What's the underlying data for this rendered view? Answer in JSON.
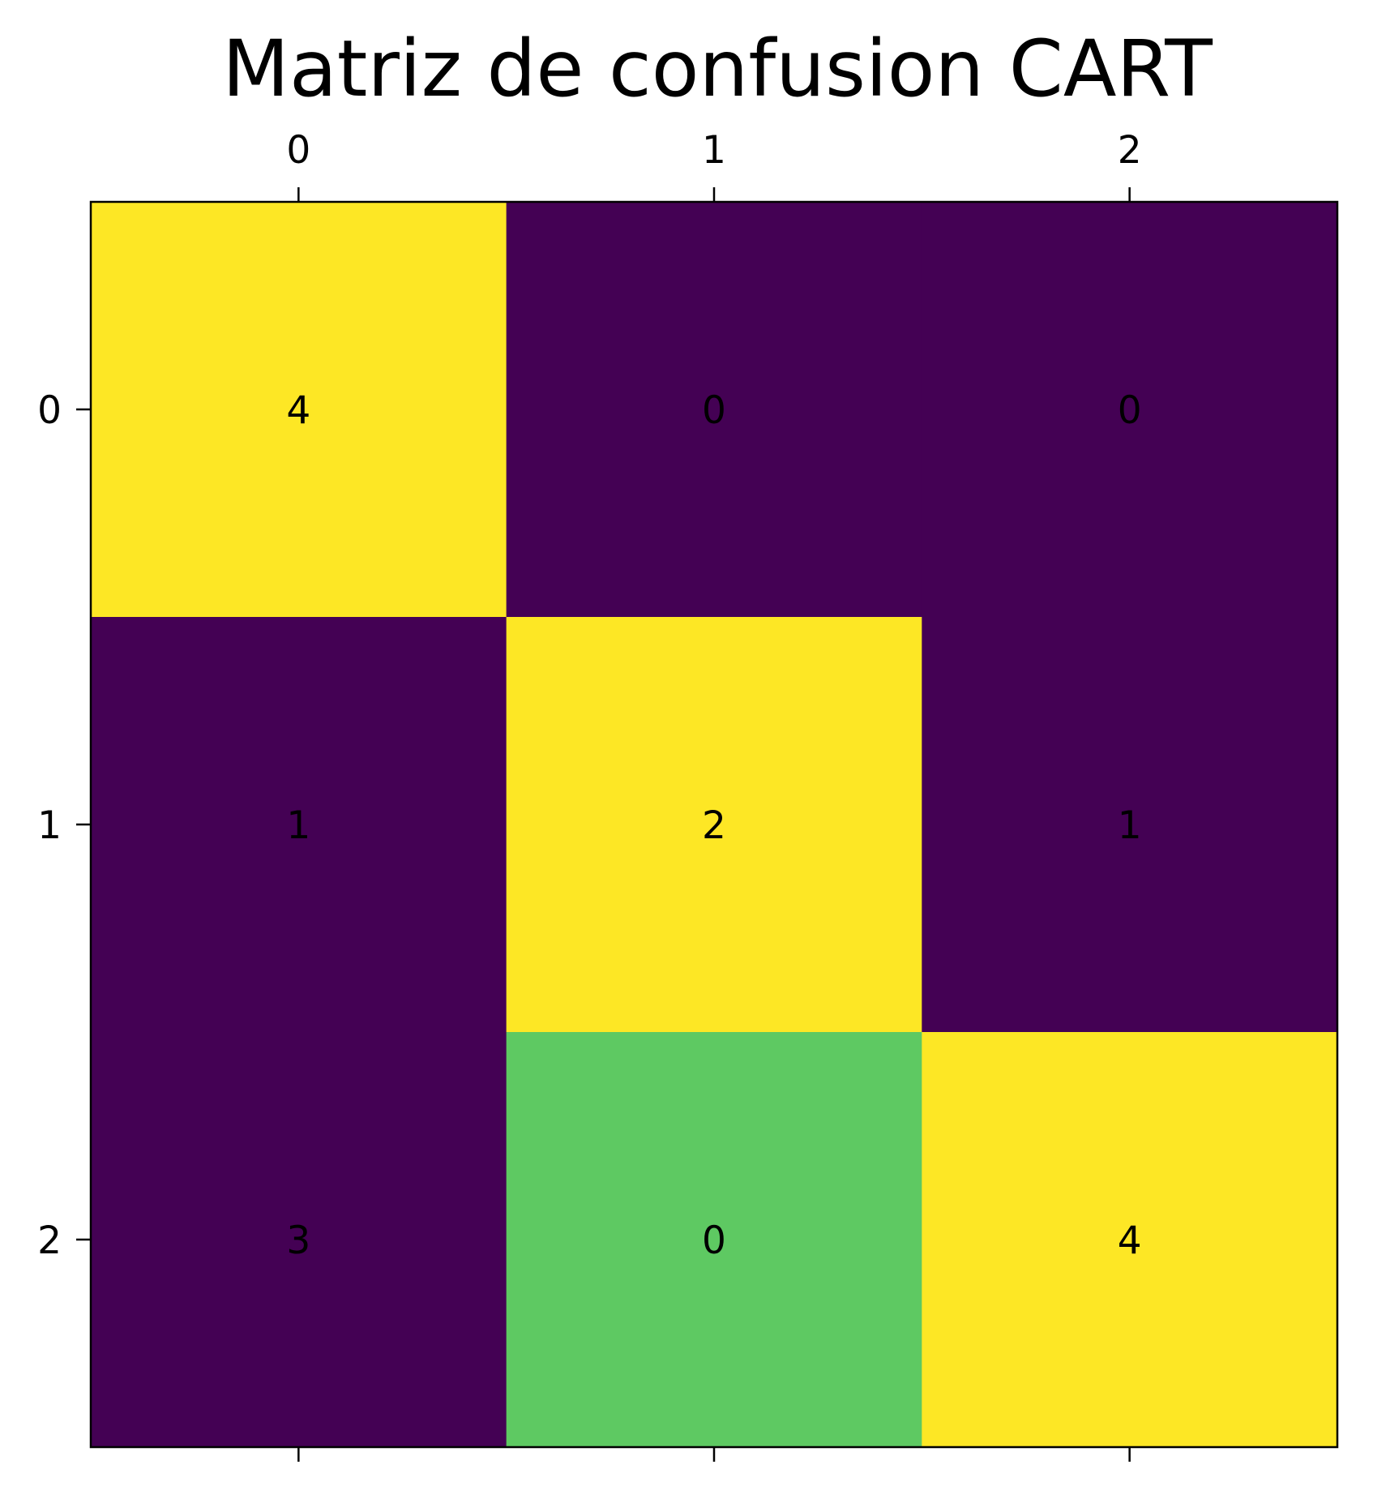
{
  "chart_data": {
    "type": "heatmap",
    "title": "Matriz de confusion CART",
    "x_ticks": [
      "0",
      "1",
      "2"
    ],
    "y_ticks": [
      "0",
      "1",
      "2"
    ],
    "x_axis_position": "top",
    "matrix": [
      [
        4,
        0,
        0
      ],
      [
        1,
        2,
        1
      ],
      [
        3,
        0,
        4
      ]
    ],
    "cell_colors": [
      [
        "#fde725",
        "#440154",
        "#440154"
      ],
      [
        "#440154",
        "#fde725",
        "#440154"
      ],
      [
        "#440154",
        "#5ec962",
        "#fde725"
      ]
    ],
    "colormap": "viridis",
    "grid": false
  }
}
